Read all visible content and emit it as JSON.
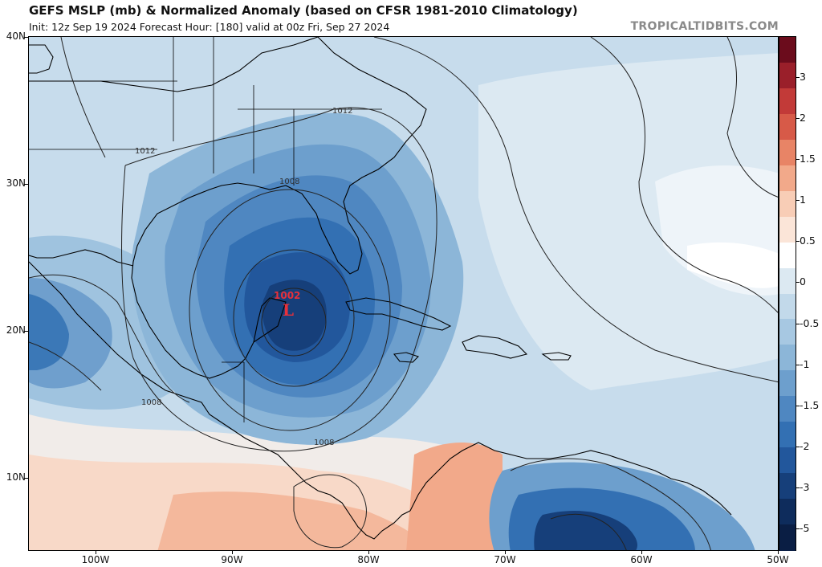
{
  "header": {
    "title": "GEFS MSLP (mb) & Normalized Anomaly (based on CFSR 1981-2010 Climatology)",
    "subtitle": "Init: 12z Sep 19 2024   Forecast Hour: [180]   valid at 00z Fri, Sep 27 2024",
    "brand": "TROPICALTIDBITS.COM"
  },
  "map": {
    "lat_labels": [
      "40N",
      "30N",
      "20N",
      "10N"
    ],
    "lon_labels": [
      "100W",
      "90W",
      "80W",
      "70W",
      "60W",
      "50W"
    ],
    "isobar_labels": [
      "1012",
      "1012",
      "1008",
      "1008",
      "1008"
    ],
    "low_center": {
      "symbol": "L",
      "pressure": "1002",
      "color": "#e8303a"
    }
  },
  "colorbar": {
    "labels": [
      "3",
      "2",
      "1.5",
      "1",
      "0.5",
      "0",
      "-0.5",
      "-1",
      "-1.5",
      "-2",
      "-3",
      "-5"
    ],
    "colors": [
      "#6b0c1c",
      "#9a1f2a",
      "#c23a38",
      "#d75a48",
      "#e88466",
      "#f2a98a",
      "#f8cdb6",
      "#fbe5d8",
      "#ffffff",
      "#dce9f2",
      "#c2d9ea",
      "#a7c8e2",
      "#8cb6d8",
      "#6d9fcd",
      "#4f87c1",
      "#3370b3",
      "#22579c",
      "#163f7a",
      "#0e2c5c",
      "#0a1e44"
    ]
  }
}
